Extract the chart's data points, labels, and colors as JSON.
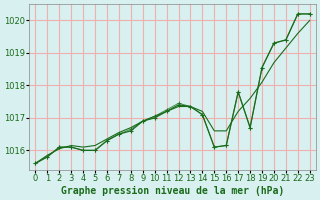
{
  "background_color": "#d8f0f0",
  "plot_bg_color": "#d8f0f0",
  "grid_color": "#f0b0b0",
  "line_color": "#1a6b1a",
  "marker_color": "#1a6b1a",
  "title": "Graphe pression niveau de la mer (hPa)",
  "xlabel_fontsize": 7,
  "ylabel_fontsize": 7,
  "title_fontsize": 7,
  "xlim": [
    -0.5,
    23.5
  ],
  "ylim": [
    1015.4,
    1020.5
  ],
  "yticks": [
    1016,
    1017,
    1018,
    1019,
    1020
  ],
  "xticks": [
    0,
    1,
    2,
    3,
    4,
    5,
    6,
    7,
    8,
    9,
    10,
    11,
    12,
    13,
    14,
    15,
    16,
    17,
    18,
    19,
    20,
    21,
    22,
    23
  ],
  "x": [
    0,
    1,
    2,
    3,
    4,
    5,
    6,
    7,
    8,
    9,
    10,
    11,
    12,
    13,
    14,
    15,
    16,
    17,
    18,
    19,
    20,
    21,
    22,
    23
  ],
  "series1": [
    1015.6,
    1015.8,
    1016.1,
    1016.1,
    1016.0,
    1016.0,
    1016.3,
    1016.5,
    1016.6,
    1016.9,
    1017.0,
    1017.2,
    1017.4,
    1017.35,
    1017.1,
    1016.1,
    1016.15,
    1017.8,
    1016.7,
    1018.55,
    1019.3,
    1019.4,
    1020.2,
    1020.2
  ],
  "series2": [
    1015.6,
    1015.8,
    1016.1,
    1016.1,
    1016.0,
    1016.0,
    1016.3,
    1016.5,
    1016.65,
    1016.9,
    1017.05,
    1017.25,
    1017.45,
    1017.35,
    1017.1,
    1016.1,
    1016.15,
    1017.8,
    1016.7,
    1018.55,
    1019.3,
    1019.4,
    1020.2,
    1020.2
  ],
  "series_smooth": [
    1015.6,
    1015.85,
    1016.05,
    1016.15,
    1016.1,
    1016.15,
    1016.35,
    1016.55,
    1016.7,
    1016.9,
    1017.05,
    1017.2,
    1017.35,
    1017.35,
    1017.2,
    1016.6,
    1016.6,
    1017.2,
    1017.6,
    1018.1,
    1018.7,
    1019.15,
    1019.6,
    1020.0
  ]
}
